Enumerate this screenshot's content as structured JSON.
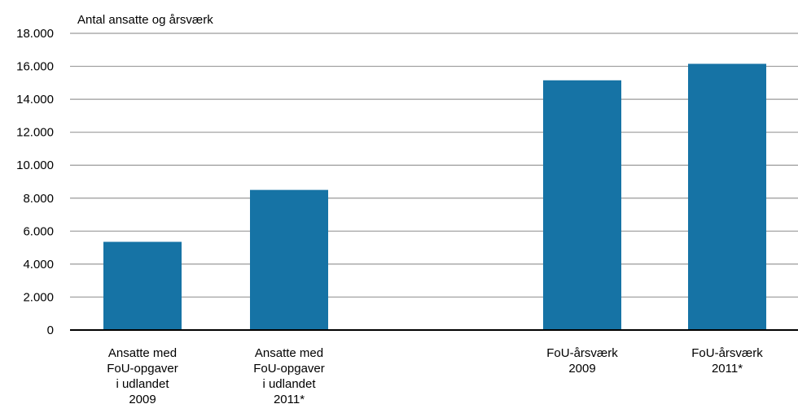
{
  "chart_data": {
    "type": "bar",
    "ylabel": "Antal ansatte og årsværk",
    "ylim": [
      0,
      18000
    ],
    "yticks": [
      {
        "value": 0,
        "label": "0"
      },
      {
        "value": 2000,
        "label": "2.000"
      },
      {
        "value": 4000,
        "label": "4.000"
      },
      {
        "value": 6000,
        "label": "6.000"
      },
      {
        "value": 8000,
        "label": "8.000"
      },
      {
        "value": 10000,
        "label": "10.000"
      },
      {
        "value": 12000,
        "label": "12.000"
      },
      {
        "value": 14000,
        "label": "14.000"
      },
      {
        "value": 16000,
        "label": "16.000"
      },
      {
        "value": 18000,
        "label": "18.000"
      }
    ],
    "categories": [
      [
        "Ansatte med",
        "FoU-opgaver",
        "i udlandet",
        "2009"
      ],
      [
        "Ansatte med",
        "FoU-opgaver",
        "i udlandet",
        "2011*"
      ],
      [
        "FoU-årsværk",
        "2009"
      ],
      [
        "FoU-årsværk",
        "2011*"
      ]
    ],
    "values": [
      5350,
      8500,
      15150,
      16150
    ],
    "grid": true,
    "bar_color": "#1673a5",
    "grid_color": "#9a9a9a",
    "axis_color": "#000000"
  }
}
